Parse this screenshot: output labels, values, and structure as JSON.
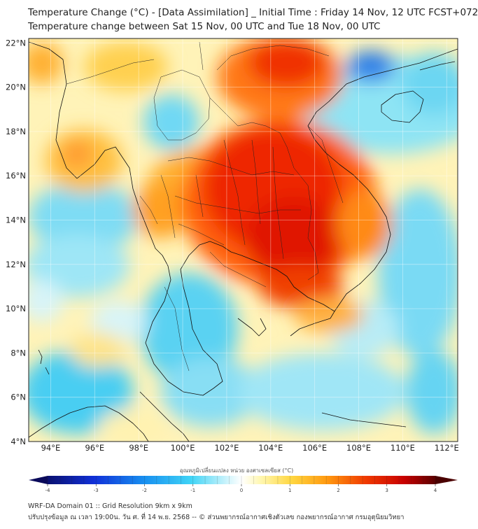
{
  "header": {
    "title_line1": "Temperature Change (°C) - [Data Assimilation] _ Initial Time : Friday 14 Nov, 12 UTC FCST+072",
    "title_line2": "Temperature change between Sat 15 Nov, 00 UTC and Tue 18 Nov, 00 UTC"
  },
  "map": {
    "lat_labels": [
      "22°N",
      "20°N",
      "18°N",
      "16°N",
      "14°N",
      "12°N",
      "10°N",
      "8°N",
      "6°N",
      "4°N"
    ],
    "lon_labels": [
      "94°E",
      "96°E",
      "98°E",
      "100°E",
      "102°E",
      "104°E",
      "106°E",
      "108°E",
      "110°E",
      "112°E"
    ],
    "lat_values": [
      22,
      20,
      18,
      16,
      14,
      12,
      10,
      8,
      6,
      4
    ],
    "lon_values": [
      94,
      96,
      98,
      100,
      102,
      104,
      106,
      108,
      110,
      112
    ],
    "lon_range": [
      93,
      112.5
    ],
    "lat_range": [
      4,
      22.2
    ]
  },
  "colorbar": {
    "title": "อุณหภูมิเปลี่ยนแปลง หน่วย องศาเซลเซียส (°C)",
    "ticks": [
      "-4",
      "-3",
      "-2",
      "-1",
      "0",
      "1",
      "2",
      "3",
      "4"
    ],
    "tick_values": [
      -4,
      -3,
      -2,
      -1,
      0,
      1,
      2,
      3,
      4
    ],
    "range": [
      -4,
      4
    ]
  },
  "footer": {
    "line1": "WRF-DA Domain 01 :: Grid Resolution 9km x 9km",
    "line2": "ปรับปรุงข้อมูล ณ เวลา 19:00น. วัน ศ. ที่ 14 พ.ย. 2568 -- © ส่วนพยากรณ์อากาศเชิงตัวเลข กองพยากรณ์อากาศ กรมอุตุนิยมวิทยา"
  },
  "colors": {
    "warm_strong": "#e81a00",
    "warm": "#ff9a10",
    "neutral": "#fffcc8",
    "cool": "#38d0f4",
    "cold": "#1060e8"
  }
}
